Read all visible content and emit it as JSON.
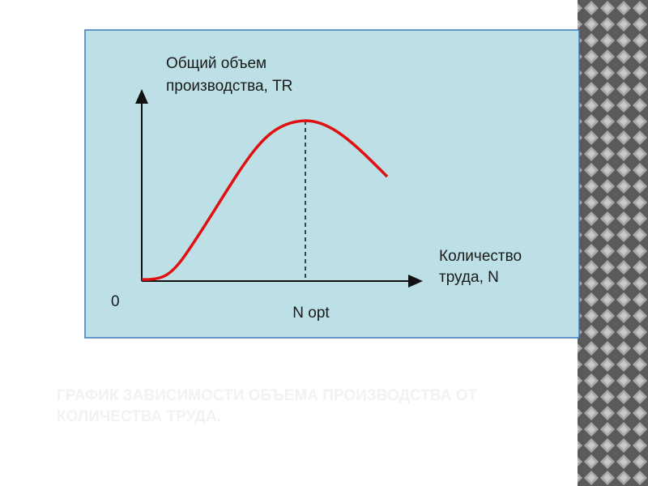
{
  "diagram": {
    "y_axis_label": [
      "Общий объем",
      "производства, TR"
    ],
    "x_axis_label": [
      "Количество",
      "труда, N"
    ],
    "origin_label": "0",
    "peak_label": "N opt"
  },
  "caption": [
    "ГРАФИК ЗАВИСИМОСТИ ОБЪЕМА ПРОИЗВОДСТВА ОТ",
    "КОЛИЧЕСТВА ТРУДА."
  ]
}
